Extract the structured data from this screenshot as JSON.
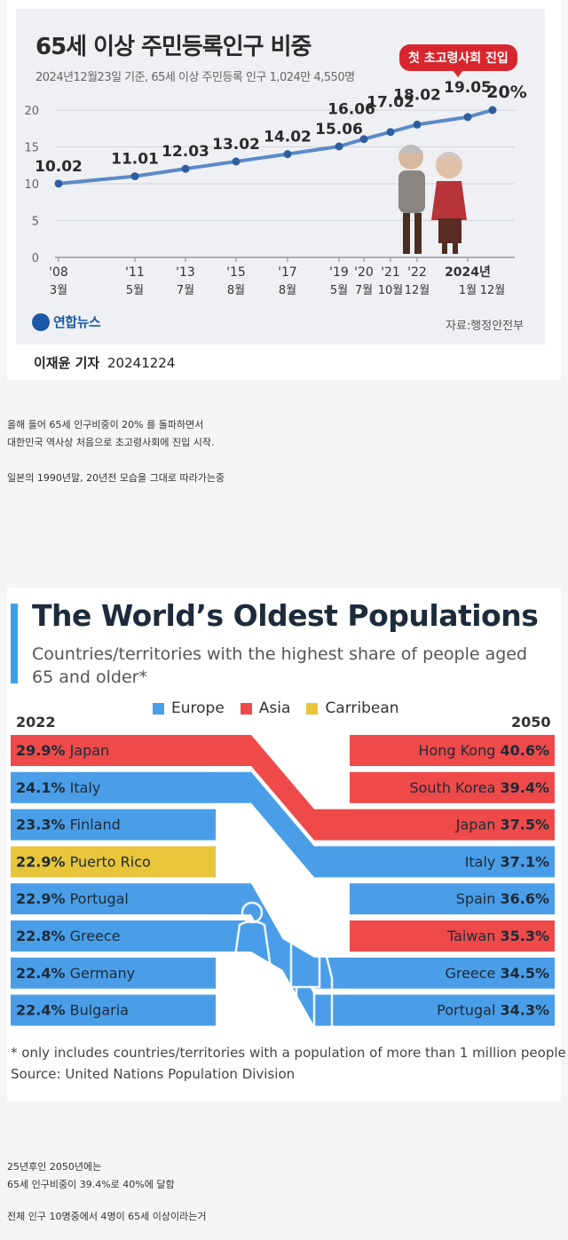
{
  "chart1": {
    "title": "65세 이상 주민등록인구 비중",
    "subtitle": "2024년12월23일 기준, 65세 이상 주민등록 인구 1,024만 4,550명",
    "badge": "첫 초고령사회 진입",
    "logo": "연합뉴스",
    "source": "자료:행정안전부",
    "reporter_name": "이재윤 기자",
    "reporter_date": "20241224"
  },
  "paragraph1": [
    "올해 들어 65세 인구비중이 20% 를 돌파하면서",
    "대한민국 역사상 처음으로 초고령사회에 진입 시작.",
    "",
    "일본의 1990년말, 20년전 모습을 그대로 따라가는중"
  ],
  "chart2": {
    "title": "The World’s Oldest Populations",
    "subtitle": "Countries/territories with the highest share of people aged 65 and older*",
    "year_left": "2022",
    "year_right": "2050",
    "footnote": "* only includes countries/territories with a population of more than 1 million people",
    "source": "Source: United Nations Population Division"
  },
  "paragraph2": [
    "25년후인 2050년에는",
    "65세 인구비중이 39.4%로 40%에 달함",
    "",
    "전체 인구 10명중에서 4명이 65세 이상이라는거"
  ],
  "chart_data": [
    {
      "type": "line",
      "title": "65세 이상 주민등록인구 비중",
      "x": [
        "'08 3월",
        "'11 5월",
        "'13 7월",
        "'15 8월",
        "'17 8월",
        "'19 5월",
        "'20 7월",
        "'21 10월",
        "'22 12월",
        "2024년 1월",
        "2024년 12월"
      ],
      "x_top": [
        "'08",
        "'11",
        "'13",
        "'15",
        "'17",
        "'19",
        "'20",
        "'21",
        "'22",
        "2024년",
        ""
      ],
      "x_bottom": [
        "3월",
        "5월",
        "7월",
        "8월",
        "8월",
        "5월",
        "7월",
        "10월",
        "12월",
        "1월",
        "12월"
      ],
      "values": [
        10.02,
        11.01,
        12.03,
        13.02,
        14.02,
        15.06,
        16.06,
        17.02,
        18.02,
        19.05,
        20
      ],
      "labels": [
        "10.02",
        "11.01",
        "12.03",
        "13.02",
        "14.02",
        "15.06",
        "16.06",
        "17.02",
        "18.02",
        "19.05",
        "20%"
      ],
      "ylim": [
        0,
        20
      ],
      "yticks": [
        0,
        5,
        10,
        15,
        20
      ],
      "color": "#5b8ac9"
    },
    {
      "type": "bump",
      "title": "The World’s Oldest Populations",
      "legend": [
        {
          "name": "Europe",
          "color": "#4a9ee8"
        },
        {
          "name": "Asia",
          "color": "#ee4a4a"
        },
        {
          "name": "Carribean",
          "color": "#e8c53a"
        }
      ],
      "left": [
        {
          "country": "Japan",
          "value": "29.9%",
          "region": "Asia"
        },
        {
          "country": "Italy",
          "value": "24.1%",
          "region": "Europe"
        },
        {
          "country": "Finland",
          "value": "23.3%",
          "region": "Europe"
        },
        {
          "country": "Puerto Rico",
          "value": "22.9%",
          "region": "Carribean"
        },
        {
          "country": "Portugal",
          "value": "22.9%",
          "region": "Europe"
        },
        {
          "country": "Greece",
          "value": "22.8%",
          "region": "Europe"
        },
        {
          "country": "Germany",
          "value": "22.4%",
          "region": "Europe"
        },
        {
          "country": "Bulgaria",
          "value": "22.4%",
          "region": "Europe"
        }
      ],
      "right": [
        {
          "country": "Hong Kong",
          "value": "40.6%",
          "region": "Asia"
        },
        {
          "country": "South Korea",
          "value": "39.4%",
          "region": "Asia"
        },
        {
          "country": "Japan",
          "value": "37.5%",
          "region": "Asia"
        },
        {
          "country": "Italy",
          "value": "37.1%",
          "region": "Europe"
        },
        {
          "country": "Spain",
          "value": "36.6%",
          "region": "Europe"
        },
        {
          "country": "Taiwan",
          "value": "35.3%",
          "region": "Asia"
        },
        {
          "country": "Greece",
          "value": "34.5%",
          "region": "Europe"
        },
        {
          "country": "Portugal",
          "value": "34.3%",
          "region": "Europe"
        }
      ]
    }
  ]
}
